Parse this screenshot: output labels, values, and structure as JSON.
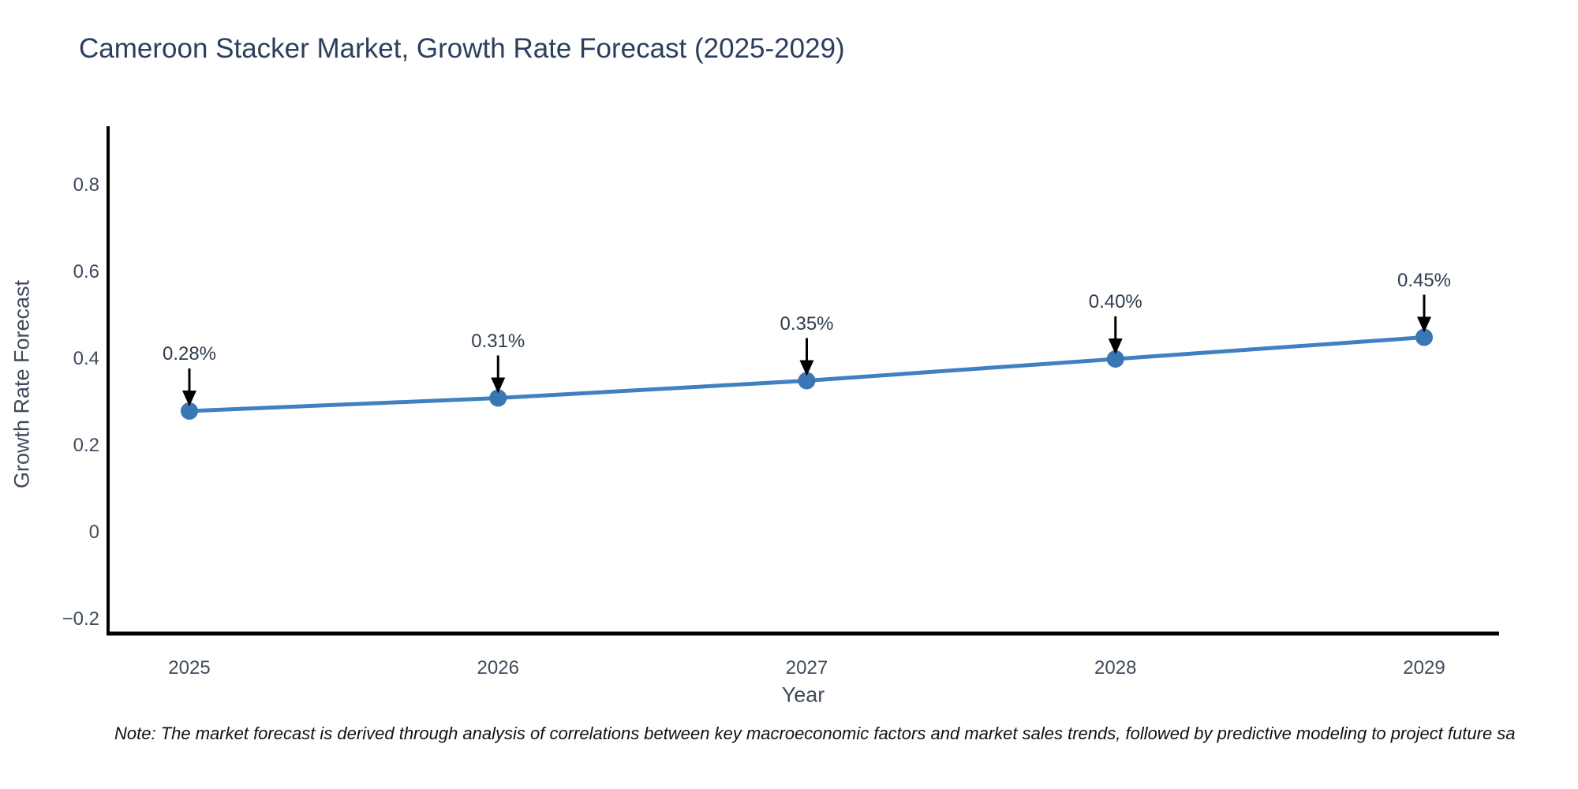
{
  "header": {
    "title": "Cameroon Stacker Market, Growth Rate Forecast (2025-2029)"
  },
  "footnote": {
    "text": "Note: The market forecast is derived through analysis of correlations between key macroeconomic factors and market sales trends, followed by predictive modeling to project future sa"
  },
  "chart_data": {
    "type": "line",
    "title": "Cameroon Stacker Market, Growth Rate Forecast (2025-2029)",
    "xlabel": "Year",
    "ylabel": "Growth Rate Forecast",
    "x": [
      2025,
      2026,
      2027,
      2028,
      2029
    ],
    "x_tick_labels": [
      "2025",
      "2026",
      "2027",
      "2028",
      "2029"
    ],
    "series": [
      {
        "name": "Growth Rate Forecast",
        "values": [
          0.28,
          0.31,
          0.35,
          0.4,
          0.45
        ]
      }
    ],
    "point_labels": [
      "0.28%",
      "0.31%",
      "0.35%",
      "0.40%",
      "0.45%"
    ],
    "y_ticks": [
      -0.2,
      0,
      0.2,
      0.4,
      0.6,
      0.8
    ],
    "y_tick_labels": [
      "−0.2",
      "0",
      "0.2",
      "0.4",
      "0.6",
      "0.8"
    ],
    "ylim": [
      -0.233,
      0.935
    ],
    "grid": false,
    "legend_position": "none",
    "annotation_style": "label-with-down-arrow",
    "colors": {
      "line": "#4080c0",
      "marker": "#3876b4",
      "annotation_arrow": "#000000",
      "annotation_text": "#2e3d50",
      "axis_line": "#000000",
      "tick_text": "#3e4b5f",
      "title_text": "#2a3f5f",
      "background": "#ffffff"
    }
  }
}
